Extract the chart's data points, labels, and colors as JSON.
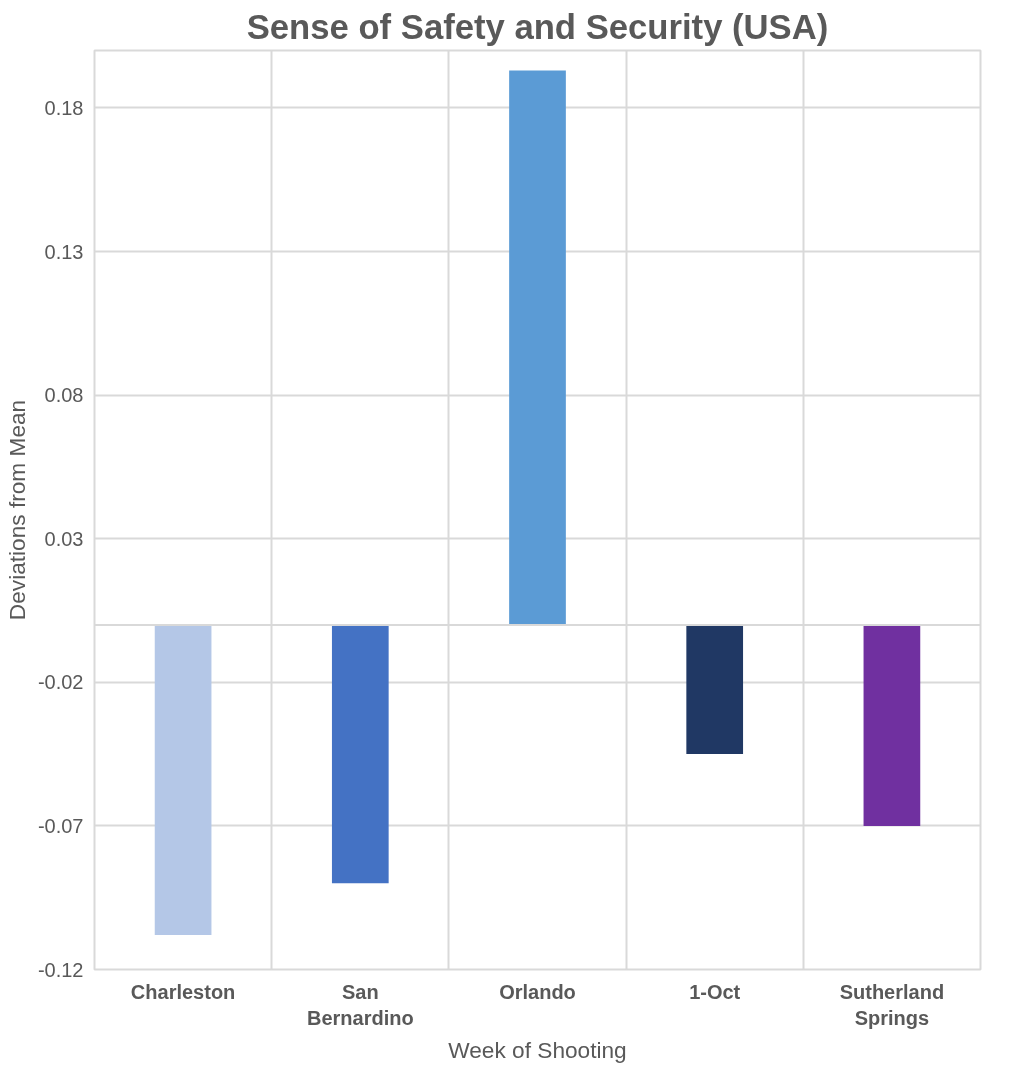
{
  "chart_data": {
    "type": "bar",
    "title": "Sense of Safety and Security (USA)",
    "xlabel": "Week of Shooting",
    "ylabel": "Deviations from Mean",
    "categories": [
      "Charleston",
      "San Bernardino",
      "Orlando",
      "1-Oct",
      "Sutherland Springs"
    ],
    "values": [
      -0.108,
      -0.09,
      0.193,
      -0.045,
      -0.07
    ],
    "colors": [
      "#b4c7e7",
      "#4472c4",
      "#5b9bd5",
      "#203864",
      "#7030a0"
    ],
    "ylim": [
      -0.12,
      0.2
    ],
    "yticks": [
      -0.12,
      -0.07,
      -0.02,
      0.03,
      0.08,
      0.13,
      0.18
    ],
    "grid": true
  }
}
